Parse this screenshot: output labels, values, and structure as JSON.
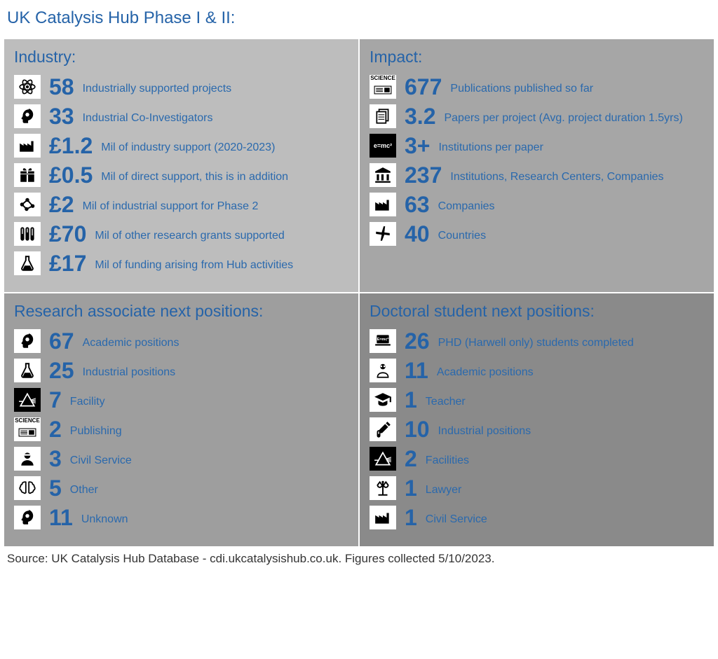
{
  "title": "UK Catalysis Hub Phase I & II:",
  "colors": {
    "accent": "#2563a8",
    "panel_tl": "#bdbdbd",
    "panel_tr": "#a6a6a6",
    "panel_bl": "#9e9e9e",
    "panel_br": "#8a8a8a",
    "icon_bg": "#ffffff",
    "icon_fg": "#000000"
  },
  "panels": {
    "industry": {
      "title": "Industry:",
      "items": [
        {
          "icon": "atom",
          "value": "58",
          "label": "Industrially supported projects"
        },
        {
          "icon": "head-gear",
          "value": "33",
          "label": "Industrial Co-Investigators"
        },
        {
          "icon": "factory",
          "value": "£1.2",
          "label": "Mil of industry support (2020-2023)"
        },
        {
          "icon": "gift",
          "value": "£0.5",
          "label": "Mil of direct support, this is in addition"
        },
        {
          "icon": "molecule",
          "value": "£2",
          "label": "Mil of industrial support for Phase 2"
        },
        {
          "icon": "tubes",
          "value": "£70",
          "label": "Mil of other research grants supported"
        },
        {
          "icon": "flask",
          "value": "£17",
          "label": "Mil of funding arising from Hub activities"
        }
      ]
    },
    "impact": {
      "title": "Impact:",
      "items": [
        {
          "icon": "newspaper",
          "value": "677",
          "label": "Publications published so far"
        },
        {
          "icon": "documents",
          "value": "3.2",
          "label": "Papers per project (Avg. project duration 1.5yrs)"
        },
        {
          "icon": "emc-dark",
          "value": "3+",
          "label": "Institutions per paper"
        },
        {
          "icon": "institution",
          "value": "237",
          "label": "Institutions, Research Centers, Companies"
        },
        {
          "icon": "factory",
          "value": "63",
          "label": "Companies"
        },
        {
          "icon": "plane",
          "value": "40",
          "label": "Countries"
        }
      ]
    },
    "research_associate": {
      "title": "Research associate next positions:",
      "items": [
        {
          "icon": "head-gear",
          "value": "67",
          "label": "Academic positions"
        },
        {
          "icon": "flask",
          "value": "25",
          "label": "Industrial positions"
        },
        {
          "icon": "prism-dark",
          "value": "7",
          "label": "Facility"
        },
        {
          "icon": "newspaper",
          "value": "2",
          "label": "Publishing"
        },
        {
          "icon": "person",
          "value": "3",
          "label": "Civil Service"
        },
        {
          "icon": "brain",
          "value": "5",
          "label": "Other"
        },
        {
          "icon": "head-gear",
          "value": "11",
          "label": "Unknown"
        }
      ]
    },
    "doctoral": {
      "title": "Doctoral student next positions:",
      "items": [
        {
          "icon": "laptop-emc",
          "value": "26",
          "label": "PHD (Harwell only) students completed"
        },
        {
          "icon": "scientist",
          "value": "11",
          "label": "Academic positions"
        },
        {
          "icon": "grad-cap",
          "value": "1",
          "label": "Teacher"
        },
        {
          "icon": "pipette",
          "value": "10",
          "label": "Industrial positions"
        },
        {
          "icon": "prism-dark",
          "value": "2",
          "label": "Facilities"
        },
        {
          "icon": "scales",
          "value": "1",
          "label": "Lawyer"
        },
        {
          "icon": "factory",
          "value": "1",
          "label": "Civil Service"
        }
      ]
    }
  },
  "source": "Source: UK Catalysis Hub Database - cdi.ukcatalysishub.co.uk. Figures collected 5/10/2023."
}
